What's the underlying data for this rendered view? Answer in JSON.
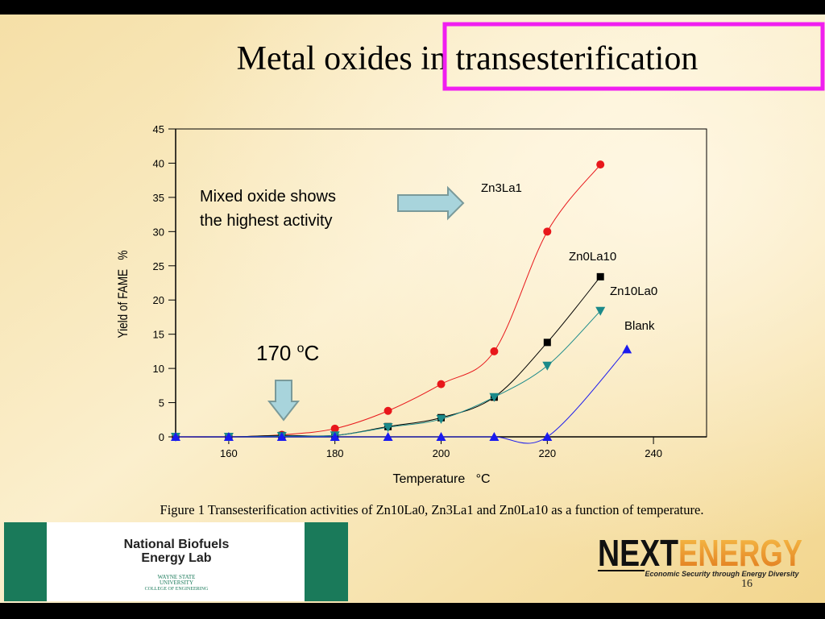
{
  "slide": {
    "title": "Metal oxides in transesterification",
    "caption": "Figure 1 Transesterification activities of Zn10La0, Zn3La1 and Zn0La10 as a function of temperature.",
    "logo_left": {
      "line1": "National Biofuels",
      "line2": "Energy Lab",
      "sub1": "WAYNE STATE",
      "sub2": "UNIVERSITY",
      "sub3": "COLLEGE OF ENGINEERING"
    },
    "logo_right": {
      "part1": "NEXT",
      "part2": "ENERGY",
      "tagline": "Economic Security through Energy Diversity"
    },
    "page_number": "16"
  },
  "chart_data": {
    "type": "line",
    "x_label": "Temperature   °C",
    "y_label": "Yield of FAME   %",
    "annotation": [
      "Mixed oxide shows",
      "the highest activity"
    ],
    "callout": {
      "text": "170 ",
      "sup": "o",
      "unit": "C"
    },
    "xlim": [
      150,
      250
    ],
    "ylim": [
      0,
      45
    ],
    "xticks": [
      160,
      180,
      200,
      220,
      240
    ],
    "yticks": [
      0,
      5,
      10,
      15,
      20,
      25,
      30,
      35,
      40,
      45
    ],
    "series": [
      {
        "name": "Zn3La1",
        "color": "#e8171b",
        "marker": "circle",
        "x": [
          150,
          160,
          170,
          180,
          190,
          200,
          210,
          220,
          230
        ],
        "values": [
          0,
          0,
          0.3,
          1.2,
          3.8,
          7.7,
          12.5,
          30,
          39.8
        ]
      },
      {
        "name": "Zn0La10",
        "color": "#000000",
        "marker": "square",
        "x": [
          150,
          160,
          170,
          180,
          190,
          200,
          210,
          220,
          230
        ],
        "values": [
          0,
          0,
          0.2,
          0.2,
          1.5,
          2.8,
          5.8,
          13.8,
          23.4
        ]
      },
      {
        "name": "Zn10La0",
        "color": "#1b8a8a",
        "marker": "triangle-down",
        "x": [
          150,
          160,
          170,
          180,
          190,
          200,
          210,
          220,
          230
        ],
        "values": [
          0,
          0,
          0.1,
          0.2,
          1.4,
          2.6,
          5.8,
          10.4,
          18.4
        ]
      },
      {
        "name": "Blank",
        "color": "#1a1aee",
        "marker": "triangle-up",
        "x": [
          150,
          160,
          170,
          180,
          190,
          200,
          210,
          220,
          235
        ],
        "values": [
          0,
          0,
          0,
          0,
          0,
          0,
          0,
          0,
          12.8
        ]
      }
    ]
  }
}
